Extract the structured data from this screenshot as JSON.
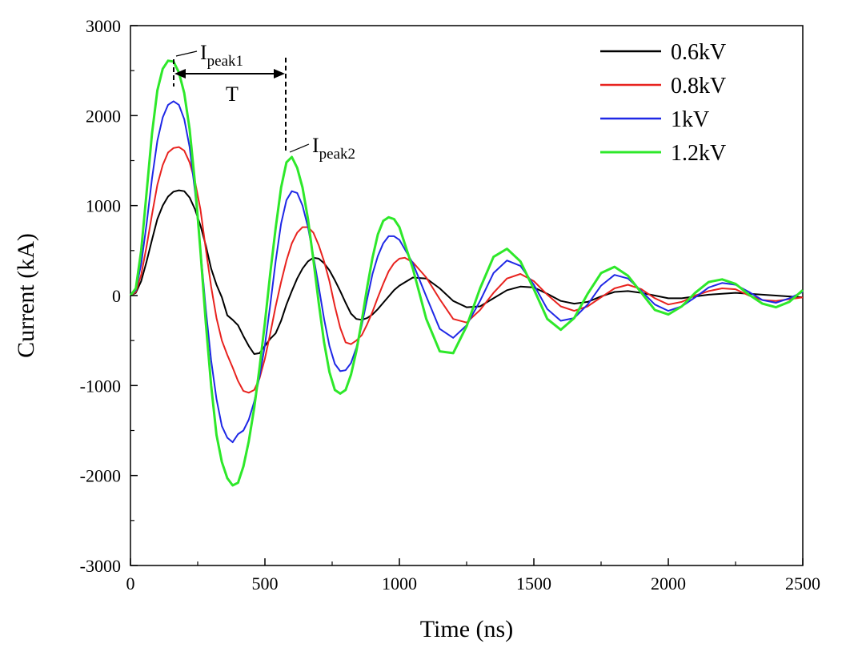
{
  "chart_data": {
    "type": "line",
    "xlabel": "Time (ns)",
    "ylabel": "Current (kA)",
    "xlim": [
      0,
      2500
    ],
    "ylim": [
      -3000,
      3000
    ],
    "x_ticks": [
      0,
      500,
      1000,
      1500,
      2000,
      2500
    ],
    "y_ticks": [
      -3000,
      -2000,
      -1000,
      0,
      1000,
      2000,
      3000
    ],
    "grid": false,
    "legend_position": "top-right",
    "series": [
      {
        "name": "0.6kV",
        "color": "#000000",
        "x": [
          0,
          20,
          40,
          60,
          80,
          100,
          120,
          140,
          160,
          180,
          200,
          220,
          240,
          260,
          280,
          300,
          320,
          340,
          360,
          380,
          400,
          420,
          440,
          460,
          480,
          500,
          520,
          540,
          560,
          580,
          600,
          620,
          640,
          660,
          680,
          700,
          720,
          740,
          760,
          780,
          800,
          820,
          840,
          860,
          880,
          900,
          920,
          940,
          960,
          980,
          1000,
          1050,
          1100,
          1150,
          1200,
          1250,
          1300,
          1350,
          1400,
          1450,
          1500,
          1550,
          1600,
          1650,
          1700,
          1750,
          1800,
          1850,
          1900,
          1950,
          2000,
          2050,
          2100,
          2150,
          2200,
          2250,
          2300,
          2350,
          2400,
          2450,
          2500
        ],
        "values": [
          0,
          30,
          160,
          380,
          620,
          850,
          1000,
          1100,
          1155,
          1170,
          1160,
          1090,
          960,
          780,
          560,
          300,
          120,
          -20,
          -220,
          -270,
          -330,
          -450,
          -560,
          -650,
          -640,
          -560,
          -480,
          -420,
          -280,
          -100,
          50,
          190,
          300,
          380,
          420,
          410,
          360,
          280,
          170,
          50,
          -80,
          -200,
          -260,
          -270,
          -250,
          -210,
          -150,
          -80,
          -10,
          60,
          110,
          200,
          190,
          80,
          -60,
          -130,
          -120,
          -30,
          60,
          100,
          90,
          20,
          -60,
          -90,
          -70,
          -10,
          40,
          50,
          30,
          0,
          -30,
          -30,
          -10,
          10,
          20,
          30,
          20,
          10,
          0,
          -10,
          -20
        ]
      },
      {
        "name": "0.8kV",
        "color": "#e8231f",
        "x": [
          0,
          20,
          40,
          60,
          80,
          100,
          120,
          140,
          160,
          180,
          200,
          220,
          240,
          260,
          280,
          300,
          320,
          340,
          360,
          380,
          400,
          420,
          440,
          460,
          480,
          500,
          520,
          540,
          560,
          580,
          600,
          620,
          640,
          660,
          680,
          700,
          720,
          740,
          760,
          780,
          800,
          820,
          840,
          860,
          880,
          900,
          920,
          940,
          960,
          980,
          1000,
          1020,
          1050,
          1100,
          1150,
          1200,
          1250,
          1300,
          1350,
          1400,
          1450,
          1500,
          1550,
          1600,
          1650,
          1700,
          1750,
          1800,
          1850,
          1900,
          1950,
          2000,
          2050,
          2100,
          2150,
          2200,
          2250,
          2300,
          2350,
          2400,
          2450,
          2500
        ],
        "values": [
          0,
          40,
          230,
          550,
          900,
          1230,
          1450,
          1590,
          1640,
          1650,
          1610,
          1480,
          1270,
          960,
          520,
          100,
          -250,
          -500,
          -660,
          -800,
          -950,
          -1060,
          -1080,
          -1050,
          -920,
          -700,
          -420,
          -120,
          150,
          390,
          580,
          700,
          760,
          760,
          700,
          560,
          380,
          160,
          -120,
          -360,
          -520,
          -540,
          -500,
          -440,
          -320,
          -180,
          -20,
          130,
          270,
          360,
          410,
          420,
          370,
          200,
          -40,
          -260,
          -300,
          -160,
          30,
          190,
          240,
          160,
          10,
          -120,
          -170,
          -120,
          -20,
          80,
          120,
          70,
          -30,
          -100,
          -70,
          0,
          50,
          80,
          70,
          0,
          -50,
          -60,
          -40,
          -20
        ]
      },
      {
        "name": "1kV",
        "color": "#1f28e6",
        "x": [
          0,
          20,
          40,
          60,
          80,
          100,
          120,
          140,
          160,
          180,
          200,
          220,
          240,
          260,
          280,
          300,
          320,
          340,
          360,
          380,
          400,
          420,
          440,
          460,
          480,
          500,
          520,
          540,
          560,
          580,
          600,
          620,
          640,
          660,
          680,
          700,
          720,
          740,
          760,
          780,
          800,
          820,
          840,
          860,
          880,
          900,
          920,
          940,
          960,
          980,
          1000,
          1050,
          1100,
          1150,
          1200,
          1250,
          1300,
          1350,
          1400,
          1450,
          1500,
          1550,
          1600,
          1650,
          1700,
          1750,
          1800,
          1850,
          1900,
          1950,
          2000,
          2050,
          2100,
          2150,
          2200,
          2250,
          2300,
          2350,
          2400,
          2450,
          2500
        ],
        "values": [
          0,
          60,
          350,
          800,
          1300,
          1720,
          1980,
          2120,
          2160,
          2120,
          1960,
          1650,
          1160,
          520,
          -150,
          -720,
          -1150,
          -1450,
          -1580,
          -1630,
          -1540,
          -1500,
          -1380,
          -1180,
          -900,
          -550,
          -100,
          380,
          800,
          1060,
          1160,
          1140,
          1000,
          760,
          440,
          100,
          -260,
          -560,
          -760,
          -840,
          -830,
          -750,
          -580,
          -330,
          -40,
          240,
          440,
          580,
          660,
          660,
          620,
          360,
          -10,
          -370,
          -470,
          -330,
          -60,
          250,
          390,
          330,
          120,
          -150,
          -280,
          -250,
          -100,
          110,
          230,
          190,
          50,
          -100,
          -170,
          -120,
          -20,
          90,
          140,
          120,
          40,
          -50,
          -80,
          -30,
          40
        ]
      },
      {
        "name": "1.2kV",
        "color": "#2ee82a",
        "x": [
          0,
          20,
          40,
          60,
          80,
          100,
          120,
          140,
          160,
          180,
          200,
          220,
          240,
          260,
          280,
          300,
          320,
          340,
          360,
          380,
          400,
          420,
          440,
          460,
          480,
          500,
          520,
          540,
          560,
          580,
          600,
          620,
          640,
          660,
          680,
          700,
          720,
          740,
          760,
          780,
          800,
          820,
          840,
          860,
          880,
          900,
          920,
          940,
          960,
          980,
          1000,
          1050,
          1100,
          1150,
          1200,
          1250,
          1300,
          1350,
          1400,
          1450,
          1500,
          1550,
          1600,
          1650,
          1700,
          1750,
          1800,
          1850,
          1900,
          1950,
          2000,
          2050,
          2100,
          2150,
          2200,
          2250,
          2300,
          2350,
          2400,
          2450,
          2500
        ],
        "values": [
          0,
          80,
          500,
          1150,
          1800,
          2280,
          2520,
          2610,
          2600,
          2480,
          2250,
          1850,
          1250,
          500,
          -300,
          -1000,
          -1550,
          -1850,
          -2030,
          -2110,
          -2080,
          -1900,
          -1620,
          -1250,
          -800,
          -300,
          250,
          750,
          1200,
          1480,
          1540,
          1420,
          1200,
          850,
          400,
          -80,
          -520,
          -850,
          -1050,
          -1090,
          -1050,
          -880,
          -620,
          -280,
          90,
          420,
          680,
          830,
          870,
          850,
          760,
          300,
          -260,
          -620,
          -640,
          -340,
          80,
          430,
          520,
          380,
          70,
          -260,
          -380,
          -250,
          20,
          250,
          320,
          220,
          30,
          -160,
          -210,
          -120,
          30,
          150,
          180,
          130,
          10,
          -90,
          -130,
          -70,
          60
        ]
      }
    ],
    "annotations": [
      {
        "main": "I",
        "sub": "peak1"
      },
      {
        "main": "I",
        "sub": "peak2"
      },
      {
        "main": "T"
      }
    ]
  }
}
